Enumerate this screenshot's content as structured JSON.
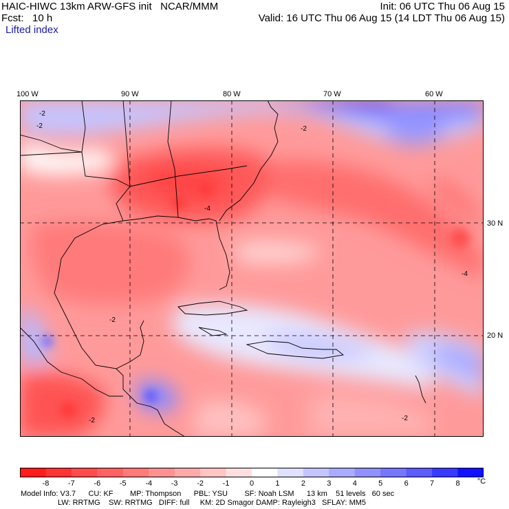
{
  "header": {
    "title_left": "HAIC-HIWC 13km ARW-GFS init   NCAR/MMM",
    "init": "Init: 06 UTC Thu 06 Aug 15",
    "fcst": "Fcst:   10 h",
    "valid": "Valid: 16 UTC Thu 06 Aug 15 (14 LDT Thu 06 Aug 15)",
    "field": "Lifted index"
  },
  "map": {
    "lon_labels": [
      "100 W",
      "90 W",
      "80 W",
      "70 W",
      "60 W"
    ],
    "lat_labels": [
      "30 N",
      "20 N"
    ],
    "contour_labels": [
      "-2",
      "-2",
      "-4",
      "-2",
      "-4",
      "-2",
      "-2",
      "-2"
    ]
  },
  "colorbar": {
    "labels": [
      "-8",
      "-7",
      "-6",
      "-5",
      "-4",
      "-3",
      "-2",
      "-1",
      "0",
      "1",
      "2",
      "3",
      "4",
      "5",
      "6",
      "7",
      "8"
    ],
    "unit": "°C",
    "colors": [
      "#ff1c1c",
      "#ff3434",
      "#ff4c4c",
      "#ff6262",
      "#ff7a7a",
      "#ff9292",
      "#ffaaaa",
      "#ffc4c4",
      "#ffe0e0",
      "#ffffff",
      "#e0e0ff",
      "#c4c4ff",
      "#aaaaff",
      "#9090ff",
      "#7676ff",
      "#5c5cff",
      "#3a3aff",
      "#1212ff"
    ]
  },
  "info": {
    "line1": "Model Info: V3.7      CU: KF        MP: Thompson      PBL: YSU        SF: Noah LSM      13 km    51 levels   60 sec",
    "line2": "LW: RRTMG    SW: RRTMG   DIFF: full     KM: 2D Smagor DAMP: Rayleigh3   SFLAY: MM5"
  }
}
